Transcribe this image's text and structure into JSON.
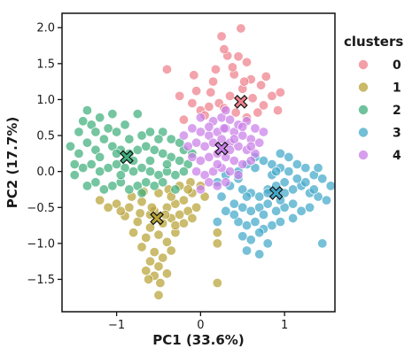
{
  "chart_data": {
    "type": "scatter",
    "xlabel": "PC1 (33.6%)",
    "ylabel": "PC2 (17.7%)",
    "xlim": [
      -1.65,
      1.6
    ],
    "ylim": [
      -1.95,
      2.2
    ],
    "xticks": [
      -1,
      0,
      1
    ],
    "xtick_labels": [
      "−1",
      "0",
      "1"
    ],
    "yticks": [
      -1.5,
      -1.0,
      -0.5,
      0.0,
      0.5,
      1.0,
      1.5,
      2.0
    ],
    "ytick_labels": [
      "−1.5",
      "−1.0",
      "−0.5",
      "0.0",
      "0.5",
      "1.0",
      "1.5",
      "2.0"
    ],
    "grid": false,
    "legend": {
      "title": "clusters",
      "placement": "outside-right"
    },
    "series": [
      {
        "name": "0",
        "color": "#ee7f8b",
        "centroid": [
          0.48,
          0.97
        ],
        "points": [
          [
            0.25,
            1.88
          ],
          [
            0.48,
            1.99
          ],
          [
            0.55,
            1.52
          ],
          [
            0.32,
            1.61
          ],
          [
            0.18,
            1.42
          ],
          [
            0.4,
            1.35
          ],
          [
            0.6,
            1.28
          ],
          [
            0.72,
            1.2
          ],
          [
            0.5,
            1.15
          ],
          [
            0.35,
            1.05
          ],
          [
            0.22,
            0.95
          ],
          [
            0.1,
            0.9
          ],
          [
            0.0,
            0.85
          ],
          [
            -0.1,
            0.95
          ],
          [
            -0.25,
            1.05
          ],
          [
            -0.4,
            1.42
          ],
          [
            -0.08,
            1.34
          ],
          [
            0.15,
            1.25
          ],
          [
            0.62,
            1.02
          ],
          [
            0.75,
            0.92
          ],
          [
            0.85,
            1.05
          ],
          [
            0.95,
            1.1
          ],
          [
            0.92,
            0.85
          ],
          [
            0.68,
            0.82
          ],
          [
            0.55,
            0.75
          ],
          [
            0.28,
            0.88
          ],
          [
            0.05,
            0.78
          ],
          [
            0.38,
            1.45
          ],
          [
            0.45,
            1.6
          ],
          [
            0.28,
            1.7
          ],
          [
            0.42,
            0.82
          ],
          [
            -0.2,
            0.72
          ],
          [
            0.78,
            1.32
          ],
          [
            0.52,
            1.25
          ],
          [
            0.12,
            1.1
          ],
          [
            -0.05,
            1.12
          ]
        ]
      },
      {
        "name": "1",
        "color": "#b7a236",
        "centroid": [
          -0.52,
          -0.65
        ],
        "points": [
          [
            -1.0,
            -0.45
          ],
          [
            -0.85,
            -0.5
          ],
          [
            -0.7,
            -0.42
          ],
          [
            -0.55,
            -0.55
          ],
          [
            -0.4,
            -0.5
          ],
          [
            -0.3,
            -0.45
          ],
          [
            -0.2,
            -0.4
          ],
          [
            -0.1,
            -0.3
          ],
          [
            0.0,
            -0.2
          ],
          [
            -0.9,
            -0.62
          ],
          [
            -0.75,
            -0.7
          ],
          [
            -0.6,
            -0.78
          ],
          [
            -0.45,
            -0.72
          ],
          [
            -0.35,
            -0.65
          ],
          [
            -0.25,
            -0.6
          ],
          [
            -0.15,
            -0.55
          ],
          [
            -0.05,
            -0.5
          ],
          [
            0.05,
            -0.35
          ],
          [
            -0.8,
            -0.85
          ],
          [
            -0.65,
            -0.92
          ],
          [
            -0.5,
            -0.88
          ],
          [
            -0.4,
            -0.98
          ],
          [
            -0.3,
            -0.85
          ],
          [
            -0.7,
            -1.05
          ],
          [
            -0.55,
            -1.12
          ],
          [
            -0.45,
            -1.2
          ],
          [
            -0.35,
            -1.1
          ],
          [
            -0.6,
            -1.25
          ],
          [
            -0.5,
            -1.32
          ],
          [
            -0.55,
            -1.45
          ],
          [
            -0.65,
            -1.38
          ],
          [
            -0.4,
            -1.42
          ],
          [
            -0.5,
            -1.72
          ],
          [
            0.2,
            -1.55
          ],
          [
            0.2,
            -0.85
          ],
          [
            0.2,
            -1.0
          ],
          [
            -1.2,
            -0.4
          ],
          [
            -1.1,
            -0.5
          ],
          [
            -0.95,
            -0.55
          ],
          [
            -0.82,
            -0.35
          ],
          [
            -0.68,
            -0.28
          ],
          [
            -0.5,
            -0.3
          ],
          [
            -0.38,
            -0.25
          ],
          [
            -0.25,
            -0.2
          ],
          [
            -0.12,
            -0.15
          ],
          [
            -0.6,
            -0.6
          ],
          [
            -0.72,
            -0.58
          ],
          [
            -0.3,
            -0.75
          ],
          [
            -0.2,
            -0.72
          ],
          [
            -0.1,
            -0.65
          ],
          [
            -0.42,
            -0.6
          ],
          [
            -0.58,
            -0.5
          ],
          [
            -0.35,
            -0.35
          ],
          [
            -0.15,
            -0.25
          ],
          [
            -0.62,
            -1.5
          ],
          [
            -0.48,
            -1.55
          ]
        ]
      },
      {
        "name": "2",
        "color": "#3fae7c",
        "centroid": [
          -0.88,
          0.2
        ],
        "points": [
          [
            -1.55,
            0.35
          ],
          [
            -1.45,
            0.25
          ],
          [
            -1.35,
            0.4
          ],
          [
            -1.25,
            0.3
          ],
          [
            -1.15,
            0.45
          ],
          [
            -1.05,
            0.35
          ],
          [
            -0.95,
            0.3
          ],
          [
            -0.85,
            0.25
          ],
          [
            -0.75,
            0.3
          ],
          [
            -0.65,
            0.35
          ],
          [
            -0.55,
            0.3
          ],
          [
            -0.45,
            0.25
          ],
          [
            -0.35,
            0.2
          ],
          [
            -0.25,
            0.15
          ],
          [
            -0.15,
            0.1
          ],
          [
            -1.5,
            0.1
          ],
          [
            -1.4,
            0.05
          ],
          [
            -1.3,
            0.1
          ],
          [
            -1.2,
            0.0
          ],
          [
            -1.1,
            0.05
          ],
          [
            -1.0,
            0.1
          ],
          [
            -0.9,
            0.05
          ],
          [
            -0.8,
            0.0
          ],
          [
            -0.7,
            0.05
          ],
          [
            -0.6,
            0.0
          ],
          [
            -0.5,
            -0.05
          ],
          [
            -0.4,
            0.0
          ],
          [
            -0.3,
            -0.05
          ],
          [
            -0.2,
            0.0
          ],
          [
            -1.35,
            -0.2
          ],
          [
            -1.25,
            -0.15
          ],
          [
            -1.15,
            -0.25
          ],
          [
            -1.05,
            -0.2
          ],
          [
            -0.95,
            -0.15
          ],
          [
            -0.85,
            -0.25
          ],
          [
            -0.75,
            -0.2
          ],
          [
            -0.65,
            -0.15
          ],
          [
            -0.55,
            -0.2
          ],
          [
            -0.45,
            -0.15
          ],
          [
            -1.3,
            0.65
          ],
          [
            -1.2,
            0.75
          ],
          [
            -1.1,
            0.6
          ],
          [
            -1.0,
            0.55
          ],
          [
            -0.9,
            0.65
          ],
          [
            -0.7,
            0.5
          ],
          [
            -0.6,
            0.55
          ],
          [
            -1.35,
            0.85
          ],
          [
            -1.25,
            0.55
          ],
          [
            -0.75,
            0.8
          ],
          [
            -0.45,
            0.55
          ],
          [
            -0.35,
            0.45
          ],
          [
            -1.45,
            0.55
          ],
          [
            -1.4,
            0.7
          ],
          [
            -0.3,
            -0.25
          ],
          [
            -0.2,
            0.3
          ],
          [
            -0.1,
            0.25
          ],
          [
            -1.05,
            0.8
          ],
          [
            -0.85,
            0.45
          ],
          [
            -0.5,
            0.45
          ],
          [
            -0.25,
            0.4
          ],
          [
            -1.5,
            -0.05
          ],
          [
            -0.95,
            -0.05
          ],
          [
            -0.7,
            -0.3
          ],
          [
            -1.2,
            0.2
          ],
          [
            -1.0,
            0.25
          ],
          [
            -0.8,
            0.15
          ],
          [
            -0.6,
            0.15
          ],
          [
            -0.4,
            0.1
          ]
        ]
      },
      {
        "name": "3",
        "color": "#41a8c9",
        "centroid": [
          0.9,
          -0.3
        ],
        "points": [
          [
            0.2,
            -0.15
          ],
          [
            0.3,
            -0.05
          ],
          [
            0.45,
            0.0
          ],
          [
            0.55,
            0.1
          ],
          [
            0.65,
            0.2
          ],
          [
            0.75,
            0.15
          ],
          [
            0.85,
            0.1
          ],
          [
            0.95,
            0.05
          ],
          [
            1.05,
            0.0
          ],
          [
            1.15,
            0.1
          ],
          [
            1.25,
            0.05
          ],
          [
            1.35,
            -0.05
          ],
          [
            1.45,
            -0.1
          ],
          [
            1.55,
            -0.2
          ],
          [
            0.35,
            -0.2
          ],
          [
            0.5,
            -0.25
          ],
          [
            0.6,
            -0.3
          ],
          [
            0.7,
            -0.35
          ],
          [
            0.8,
            -0.25
          ],
          [
            0.9,
            -0.2
          ],
          [
            1.0,
            -0.3
          ],
          [
            1.1,
            -0.25
          ],
          [
            1.2,
            -0.2
          ],
          [
            1.3,
            -0.3
          ],
          [
            1.4,
            -0.35
          ],
          [
            1.5,
            -0.4
          ],
          [
            0.4,
            -0.45
          ],
          [
            0.5,
            -0.5
          ],
          [
            0.6,
            -0.55
          ],
          [
            0.7,
            -0.5
          ],
          [
            0.8,
            -0.45
          ],
          [
            0.9,
            -0.55
          ],
          [
            1.0,
            -0.5
          ],
          [
            1.1,
            -0.45
          ],
          [
            1.2,
            -0.55
          ],
          [
            1.3,
            -0.5
          ],
          [
            0.45,
            -0.7
          ],
          [
            0.55,
            -0.75
          ],
          [
            0.65,
            -0.7
          ],
          [
            0.75,
            -0.8
          ],
          [
            0.85,
            -0.75
          ],
          [
            0.95,
            -0.7
          ],
          [
            0.5,
            -0.9
          ],
          [
            0.6,
            -0.95
          ],
          [
            0.7,
            -0.85
          ],
          [
            0.8,
            -1.0
          ],
          [
            0.55,
            -1.1
          ],
          [
            0.7,
            -1.15
          ],
          [
            0.8,
            -0.3
          ],
          [
            0.25,
            -0.35
          ],
          [
            1.45,
            -1.0
          ],
          [
            0.95,
            0.25
          ],
          [
            1.05,
            0.2
          ],
          [
            1.25,
            -0.15
          ],
          [
            0.65,
            0.05
          ],
          [
            0.85,
            -0.05
          ],
          [
            1.15,
            -0.1
          ],
          [
            0.55,
            -0.35
          ],
          [
            0.75,
            -0.6
          ],
          [
            0.95,
            -0.4
          ],
          [
            1.35,
            -0.25
          ],
          [
            0.4,
            -0.6
          ],
          [
            0.3,
            -0.55
          ],
          [
            1.1,
            -0.65
          ],
          [
            1.0,
            -0.15
          ],
          [
            0.9,
            0.0
          ],
          [
            1.4,
            0.05
          ],
          [
            0.2,
            -0.7
          ],
          [
            0.45,
            -0.1
          ]
        ]
      },
      {
        "name": "4",
        "color": "#c97ee8",
        "centroid": [
          0.25,
          0.32
        ],
        "points": [
          [
            -0.1,
            0.6
          ],
          [
            0.0,
            0.55
          ],
          [
            0.1,
            0.5
          ],
          [
            0.2,
            0.55
          ],
          [
            0.3,
            0.6
          ],
          [
            0.4,
            0.55
          ],
          [
            0.5,
            0.5
          ],
          [
            0.6,
            0.45
          ],
          [
            0.7,
            0.4
          ],
          [
            -0.05,
            0.4
          ],
          [
            0.05,
            0.35
          ],
          [
            0.15,
            0.4
          ],
          [
            0.25,
            0.45
          ],
          [
            0.35,
            0.4
          ],
          [
            0.45,
            0.35
          ],
          [
            0.55,
            0.3
          ],
          [
            0.65,
            0.25
          ],
          [
            -0.1,
            0.2
          ],
          [
            0.0,
            0.15
          ],
          [
            0.1,
            0.2
          ],
          [
            0.2,
            0.25
          ],
          [
            0.3,
            0.2
          ],
          [
            0.4,
            0.15
          ],
          [
            0.5,
            0.1
          ],
          [
            0.6,
            0.15
          ],
          [
            -0.05,
            0.0
          ],
          [
            0.05,
            -0.05
          ],
          [
            0.15,
            0.0
          ],
          [
            0.25,
            0.05
          ],
          [
            0.35,
            0.0
          ],
          [
            0.45,
            -0.05
          ],
          [
            0.1,
            -0.15
          ],
          [
            0.2,
            -0.2
          ],
          [
            0.3,
            -0.15
          ],
          [
            0.0,
            -0.25
          ],
          [
            0.15,
            0.7
          ],
          [
            0.25,
            0.75
          ],
          [
            0.35,
            0.72
          ],
          [
            0.45,
            0.65
          ],
          [
            0.3,
            0.85
          ],
          [
            0.55,
            0.7
          ],
          [
            0.65,
            0.6
          ],
          [
            0.75,
            0.55
          ],
          [
            0.0,
            0.75
          ],
          [
            -0.2,
            0.5
          ],
          [
            -0.15,
            0.35
          ],
          [
            0.35,
            0.3
          ],
          [
            0.2,
            0.1
          ],
          [
            0.1,
            0.62
          ],
          [
            0.4,
            0.45
          ],
          [
            0.28,
            0.6
          ],
          [
            0.5,
            0.62
          ],
          [
            0.6,
            0.35
          ]
        ]
      }
    ]
  }
}
